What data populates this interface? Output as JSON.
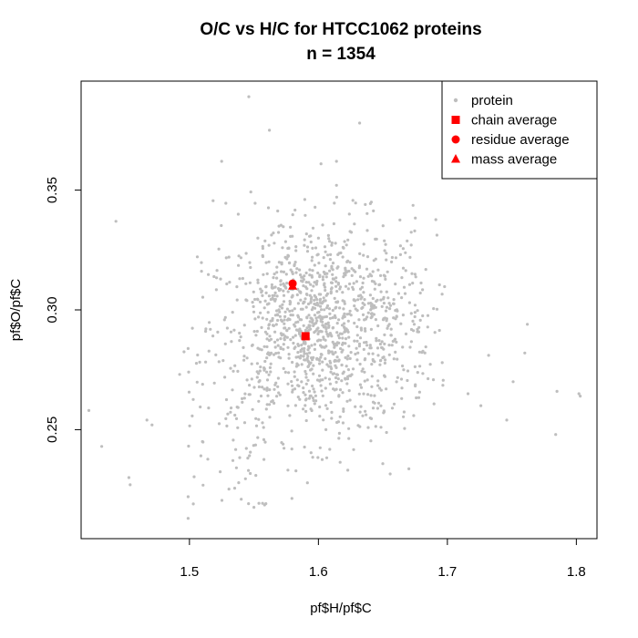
{
  "chart_data": {
    "type": "scatter",
    "title": "O/C vs H/C for HTCC1062 proteins",
    "subtitle": "n = 1354",
    "xlabel": "pf$H/pf$C",
    "ylabel": "pf$O/pf$C",
    "xlim": [
      1.416,
      1.816
    ],
    "ylim": [
      0.2045,
      0.3955
    ],
    "x_ticks": [
      1.5,
      1.6,
      1.7,
      1.8
    ],
    "x_tick_labels": [
      "1.5",
      "1.6",
      "1.7",
      "1.8"
    ],
    "y_ticks": [
      0.25,
      0.3,
      0.35
    ],
    "y_tick_labels": [
      "0.25",
      "0.30",
      "0.35"
    ],
    "grid": false,
    "legend_position": "top-right",
    "legend": [
      {
        "label": "protein",
        "marker": "dot",
        "color": "#bebebe"
      },
      {
        "label": "chain average",
        "marker": "square",
        "color": "#ff0000"
      },
      {
        "label": "residue average",
        "marker": "circle",
        "color": "#ff0000"
      },
      {
        "label": "mass average",
        "marker": "triangle",
        "color": "#ff0000"
      }
    ],
    "series": [
      {
        "name": "protein",
        "color": "#bebebe",
        "n": 1354,
        "representative_points": [
          [
            1.546,
            0.389
          ],
          [
            1.632,
            0.378
          ],
          [
            1.562,
            0.375
          ],
          [
            1.525,
            0.362
          ],
          [
            1.614,
            0.362
          ],
          [
            1.602,
            0.361
          ],
          [
            1.443,
            0.337
          ],
          [
            1.422,
            0.258
          ],
          [
            1.432,
            0.243
          ],
          [
            1.453,
            0.23
          ],
          [
            1.454,
            0.227
          ],
          [
            1.467,
            0.254
          ],
          [
            1.471,
            0.252
          ],
          [
            1.499,
            0.213
          ],
          [
            1.499,
            0.222
          ],
          [
            1.503,
            0.219
          ],
          [
            1.762,
            0.294
          ],
          [
            1.76,
            0.282
          ],
          [
            1.785,
            0.266
          ],
          [
            1.802,
            0.265
          ],
          [
            1.803,
            0.264
          ],
          [
            1.784,
            0.248
          ],
          [
            1.751,
            0.27
          ],
          [
            1.716,
            0.265
          ],
          [
            1.726,
            0.26
          ],
          [
            1.746,
            0.254
          ],
          [
            1.732,
            0.281
          ],
          [
            1.641,
            0.345
          ],
          [
            1.624,
            0.34
          ],
          [
            1.614,
            0.352
          ],
          [
            1.6,
            0.33
          ],
          [
            1.553,
            0.33
          ]
        ],
        "cloud_center": [
          1.6,
          0.292
        ],
        "cloud_sd": [
          0.045,
          0.025
        ]
      },
      {
        "name": "chain average",
        "marker": "square",
        "color": "#ff0000",
        "points": [
          [
            1.59,
            0.289
          ]
        ]
      },
      {
        "name": "residue average",
        "marker": "circle",
        "color": "#ff0000",
        "points": [
          [
            1.58,
            0.311
          ]
        ]
      },
      {
        "name": "mass average",
        "marker": "triangle",
        "color": "#ff0000",
        "points": [
          [
            1.58,
            0.31
          ]
        ]
      }
    ]
  }
}
